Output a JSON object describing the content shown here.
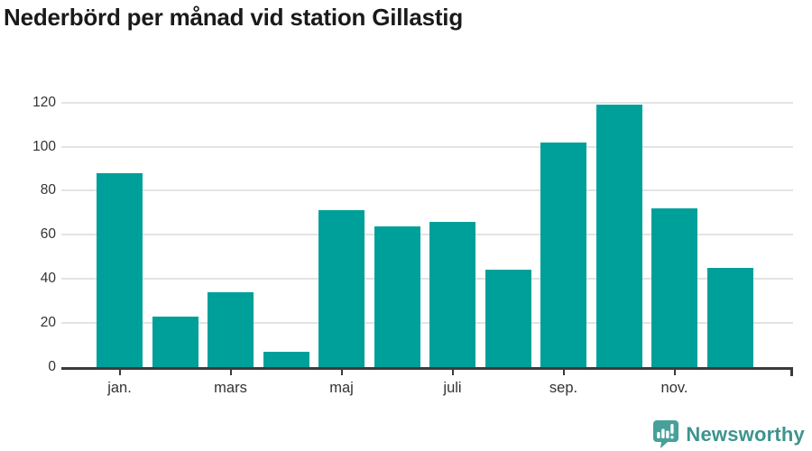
{
  "title": "Nederbörd per månad vid station Gillastig",
  "chart_data": {
    "type": "bar",
    "categories": [
      "jan.",
      "",
      "mars",
      "",
      "maj",
      "",
      "juli",
      "",
      "sep.",
      "",
      "nov.",
      ""
    ],
    "values": [
      88,
      23,
      34,
      7,
      71,
      64,
      66,
      44,
      102,
      119,
      72,
      45
    ],
    "title": "Nederbörd per månad vid station Gillastig",
    "xlabel": "",
    "ylabel": "",
    "ylim": [
      0,
      120
    ],
    "yticks": [
      0,
      20,
      40,
      60,
      80,
      100,
      120
    ],
    "grid": "horizontal-only",
    "legend": "none",
    "bar_color": "#00a09a"
  },
  "colors": {
    "bar": "#00a09a",
    "gridline": "#e3e3e3",
    "axis": "#3b3b3b",
    "tick_label": "#333333",
    "title": "#1a1a1a",
    "logo_text": "#3e948e",
    "logo_icon": "#47a09a"
  },
  "branding": {
    "logo_text": "Newsworthy",
    "icon": "newsworthy-bubble-barchart-icon"
  }
}
